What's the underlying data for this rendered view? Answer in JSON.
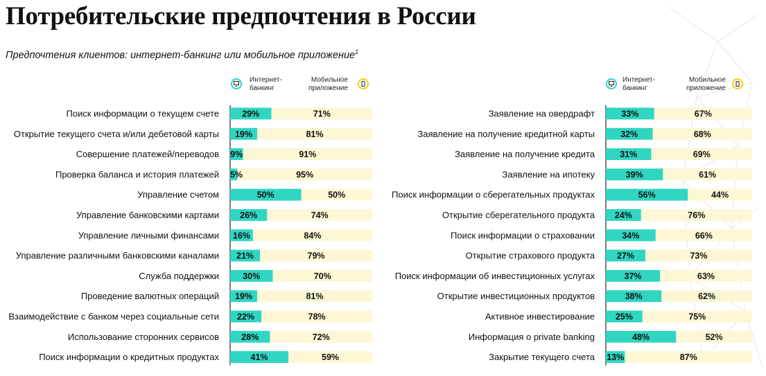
{
  "title": "Потребительские предпочтения в России",
  "subtitle": "Предпочтения клиентов: интернет-банкинг или мобильное приложение",
  "subtitle_sup": "1",
  "legend": {
    "internet": "Интернет-банкинг",
    "mobile": "Мобильное приложение",
    "internet_line1": "Интернет-",
    "internet_line2": "банкинг",
    "mobile_line1": "Мобильное",
    "mobile_line2": "приложение",
    "internet_icon": "monitor-icon",
    "mobile_icon": "smartphone-icon"
  },
  "colors": {
    "internet": "#30d6c2",
    "mobile": "#fdf7d6",
    "internet_icon_ring": "#30d6c2",
    "mobile_icon_ring": "#f2d11b",
    "axis": "#222222"
  },
  "chart_data": [
    {
      "type": "bar",
      "stacked": true,
      "orientation": "horizontal",
      "percent_stacked": true,
      "xlim": [
        0,
        100
      ],
      "categories": [
        "Поиск информации о текущем счете",
        "Открытие текущего счета и/или дебетовой карты",
        "Совершение платежей/переводов",
        "Проверка баланса и история платежей",
        "Управление счетом",
        "Управление банковскими картами",
        "Управление личными финансами",
        "Управление различными банковскими каналами",
        "Служба поддержки",
        "Проведение валютных операций",
        "Взаимодействие с банком через социальные сети",
        "Использование сторонних сервисов",
        "Поиск информации о кредитных продуктах"
      ],
      "series": [
        {
          "name": "Интернет-банкинг",
          "values": [
            29,
            19,
            9,
            5,
            50,
            26,
            16,
            21,
            30,
            19,
            22,
            28,
            41
          ]
        },
        {
          "name": "Мобильное приложение",
          "values": [
            71,
            81,
            91,
            95,
            50,
            74,
            84,
            79,
            70,
            81,
            78,
            72,
            59
          ]
        }
      ]
    },
    {
      "type": "bar",
      "stacked": true,
      "orientation": "horizontal",
      "percent_stacked": true,
      "xlim": [
        0,
        100
      ],
      "categories": [
        "Заявление на овердрафт",
        "Заявление на получение кредитной карты",
        "Заявление на получение кредита",
        "Заявление на ипотеку",
        "Поиск информации о сберегательных продуктах",
        "Открытие сберегательного продукта",
        "Поиск информации о страховании",
        "Открытие страхового продукта",
        "Поиск информации об инвестиционных услугах",
        "Открытие инвестиционных продуктов",
        "Активное инвестирование",
        "Информация о private banking",
        "Закрытие текущего счета"
      ],
      "series": [
        {
          "name": "Интернет-банкинг",
          "values": [
            33,
            32,
            31,
            39,
            56,
            24,
            34,
            27,
            37,
            38,
            25,
            48,
            13
          ]
        },
        {
          "name": "Мобильное приложение",
          "values": [
            67,
            68,
            69,
            61,
            44,
            76,
            66,
            73,
            63,
            62,
            75,
            52,
            87
          ]
        }
      ]
    }
  ]
}
